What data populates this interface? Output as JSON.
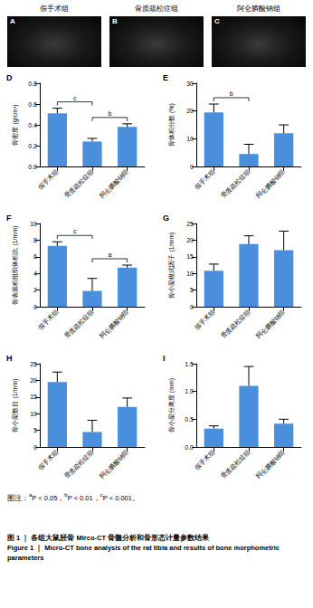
{
  "images": [
    {
      "panel": "A",
      "group": "假手术组"
    },
    {
      "panel": "B",
      "group": "骨质疏松症组"
    },
    {
      "panel": "C",
      "group": "阿仑膦酸钠组"
    }
  ],
  "chart_data": [
    {
      "type": "bar",
      "panel": "D",
      "categories": [
        "假手术组",
        "骨质疏松症组",
        "阿仑膦酸钠组"
      ],
      "values": [
        0.51,
        0.24,
        0.38
      ],
      "errors": [
        0.05,
        0.03,
        0.03
      ],
      "color": "#4a8fdc",
      "ylabel": "骨密度 (g/cm³)",
      "ylim": [
        0,
        0.8
      ],
      "yticks": [
        {
          "value": 0,
          "label": "0.0"
        },
        0.2,
        0.4,
        0.6,
        0.8
      ],
      "grid": false,
      "significance": [
        {
          "from": 0,
          "to": 1,
          "label": "c"
        },
        {
          "from": 1,
          "to": 2,
          "label": "b"
        }
      ]
    },
    {
      "type": "bar",
      "panel": "E",
      "categories": [
        "假手术组",
        "骨质疏松症组",
        "阿仑膦酸钠组"
      ],
      "values": [
        19.5,
        4.5,
        12
      ],
      "errors": [
        3,
        3.5,
        3
      ],
      "color": "#4a8fdc",
      "ylabel": "骨体积分数 (%)",
      "ylim": [
        0,
        30
      ],
      "yticks": [
        0,
        10,
        20,
        30
      ],
      "grid": false,
      "significance": [
        {
          "from": 0,
          "to": 1,
          "label": "b"
        }
      ]
    },
    {
      "type": "bar",
      "panel": "F",
      "categories": [
        "假手术组",
        "骨质疏松症组",
        "阿仑膦酸钠组"
      ],
      "values": [
        7.3,
        1.9,
        4.7
      ],
      "errors": [
        0.5,
        1.5,
        0.3
      ],
      "color": "#4a8fdc",
      "ylabel": "骨表面积组织体积比 (1/mm)",
      "ylim": [
        0,
        10
      ],
      "yticks": [
        0,
        2,
        4,
        6,
        8,
        10
      ],
      "grid": false,
      "significance": [
        {
          "from": 0,
          "to": 1,
          "label": "c"
        },
        {
          "from": 1,
          "to": 2,
          "label": "a"
        }
      ]
    },
    {
      "type": "bar",
      "panel": "G",
      "categories": [
        "假手术组",
        "骨质疏松症组",
        "阿仑膦酸钠组"
      ],
      "values": [
        10.8,
        18.8,
        17
      ],
      "errors": [
        2,
        2.5,
        5.7
      ],
      "color": "#4a8fdc",
      "ylabel": "骨小梁模式因子 (1/mm)",
      "ylim": [
        0,
        25
      ],
      "yticks": [
        0,
        5,
        10,
        15,
        20,
        25
      ],
      "grid": false,
      "significance": []
    },
    {
      "type": "bar",
      "panel": "H",
      "categories": [
        "假手术组",
        "骨质疏松症组",
        "阿仑膦酸钠组"
      ],
      "values": [
        19.5,
        4.5,
        12
      ],
      "errors": [
        3,
        3.5,
        2.7
      ],
      "color": "#4a8fdc",
      "ylabel": "骨小梁数目 (1/mm)",
      "ylim": [
        0,
        25
      ],
      "yticks": [
        0,
        5,
        10,
        15,
        20,
        25
      ],
      "grid": false,
      "significance": []
    },
    {
      "type": "bar",
      "panel": "I",
      "categories": [
        "假手术组",
        "骨质疏松症组",
        "阿仑膦酸钠组"
      ],
      "values": [
        0.33,
        1.1,
        0.42
      ],
      "errors": [
        0.05,
        0.35,
        0.08
      ],
      "color": "#4a8fdc",
      "ylabel": "骨小梁分离度 (mm)",
      "ylim": [
        0,
        1.5
      ],
      "yticks": [
        {
          "value": 0,
          "label": "0.0"
        },
        0.5,
        {
          "value": 1,
          "label": "1.0"
        },
        1.5
      ],
      "grid": false,
      "significance": []
    }
  ],
  "footnote": {
    "label": "图注：",
    "items": [
      {
        "sup": "a",
        "text": "P < 0.05，"
      },
      {
        "sup": "b",
        "text": "P < 0.01，"
      },
      {
        "sup": "c",
        "text": "P < 0.001。"
      }
    ]
  },
  "caption_cn": "图 1 ｜ 各组大鼠胫骨 Mirco-CT 骨髓分析和骨形态计量参数结果",
  "caption_en": "Figure 1 ｜ Micro-CT bone analysis of the rat tibia and results of bone morphometric parameters"
}
